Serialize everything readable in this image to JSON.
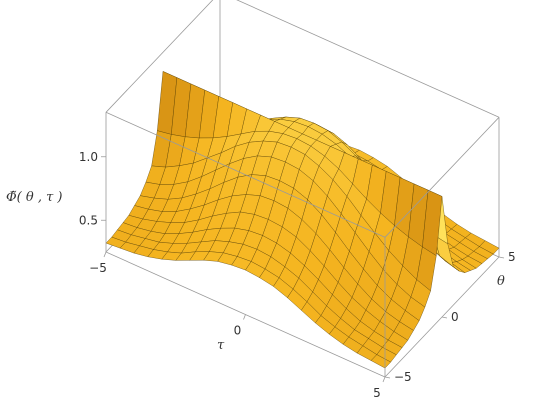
{
  "chart_data": {
    "type": "surface",
    "title": "",
    "xlabel": "τ",
    "ylabel": "θ",
    "zlabel": "Φ̃( θ , τ )",
    "xlim": [
      -5,
      5
    ],
    "ylim": [
      -5,
      5
    ],
    "zlim": [
      0.25,
      1.35
    ],
    "x_ticks": [
      {
        "value": -5,
        "label": "−5"
      },
      {
        "value": 0,
        "label": "0"
      },
      {
        "value": 5,
        "label": "5"
      }
    ],
    "y_ticks": [
      {
        "value": -5,
        "label": "−5"
      },
      {
        "value": 0,
        "label": "0"
      },
      {
        "value": 5,
        "label": "5"
      }
    ],
    "z_ticks": [
      {
        "value": 0.5,
        "label": "0.5"
      },
      {
        "value": 1.0,
        "label": "1.0"
      }
    ],
    "tau_grid": [
      -5,
      -4.5,
      -4,
      -3.5,
      -3,
      -2.5,
      -2,
      -1.5,
      -1,
      -0.5,
      0,
      0.5,
      1,
      1.5,
      2,
      2.5,
      3,
      3.5,
      4,
      4.5,
      5
    ],
    "theta_grid": [
      -5,
      -4.5,
      -4,
      -3.5,
      -3,
      -2.5,
      -2,
      -1.5,
      -1,
      -0.5,
      0,
      0.5,
      1,
      1.5,
      2,
      2.5,
      3,
      3.5,
      4,
      4.5,
      5
    ],
    "z_values": [
      [
        0.32,
        0.32,
        0.33,
        0.34,
        0.35,
        0.38,
        0.41,
        0.47,
        0.55,
        0.78,
        1.2,
        0.78,
        0.55,
        0.47,
        0.41,
        0.38,
        0.35,
        0.34,
        0.33,
        0.32,
        0.32
      ],
      [
        0.33,
        0.33,
        0.34,
        0.35,
        0.37,
        0.4,
        0.44,
        0.5,
        0.59,
        0.8,
        1.2,
        0.8,
        0.59,
        0.5,
        0.44,
        0.4,
        0.37,
        0.35,
        0.34,
        0.33,
        0.33
      ],
      [
        0.34,
        0.35,
        0.36,
        0.37,
        0.4,
        0.43,
        0.48,
        0.55,
        0.65,
        0.83,
        1.2,
        0.83,
        0.65,
        0.55,
        0.48,
        0.43,
        0.4,
        0.37,
        0.36,
        0.35,
        0.34
      ],
      [
        0.36,
        0.37,
        0.38,
        0.4,
        0.44,
        0.48,
        0.54,
        0.62,
        0.72,
        0.87,
        1.2,
        0.87,
        0.72,
        0.62,
        0.54,
        0.48,
        0.44,
        0.4,
        0.38,
        0.37,
        0.36
      ],
      [
        0.39,
        0.4,
        0.42,
        0.45,
        0.49,
        0.55,
        0.62,
        0.71,
        0.81,
        0.92,
        1.2,
        0.92,
        0.81,
        0.71,
        0.62,
        0.55,
        0.49,
        0.45,
        0.42,
        0.4,
        0.39
      ],
      [
        0.43,
        0.44,
        0.47,
        0.51,
        0.56,
        0.63,
        0.71,
        0.81,
        0.9,
        0.98,
        1.2,
        0.98,
        0.9,
        0.81,
        0.71,
        0.63,
        0.56,
        0.51,
        0.47,
        0.44,
        0.43
      ],
      [
        0.48,
        0.5,
        0.53,
        0.58,
        0.64,
        0.72,
        0.81,
        0.91,
        1.0,
        1.05,
        1.2,
        1.05,
        1.0,
        0.91,
        0.81,
        0.72,
        0.64,
        0.58,
        0.53,
        0.5,
        0.48
      ],
      [
        0.53,
        0.55,
        0.59,
        0.64,
        0.71,
        0.8,
        0.9,
        1.0,
        1.08,
        1.12,
        1.2,
        1.12,
        1.08,
        1.0,
        0.9,
        0.8,
        0.71,
        0.64,
        0.59,
        0.55,
        0.53
      ],
      [
        0.57,
        0.59,
        0.63,
        0.69,
        0.77,
        0.86,
        0.97,
        1.07,
        1.14,
        1.17,
        1.2,
        1.17,
        1.14,
        1.07,
        0.97,
        0.86,
        0.77,
        0.69,
        0.63,
        0.59,
        0.57
      ],
      [
        0.59,
        0.61,
        0.66,
        0.72,
        0.8,
        0.9,
        1.01,
        1.11,
        1.18,
        1.2,
        1.2,
        1.2,
        1.18,
        1.11,
        1.01,
        0.9,
        0.8,
        0.72,
        0.66,
        0.61,
        0.59
      ],
      [
        0.6,
        0.62,
        0.67,
        0.73,
        0.81,
        0.91,
        1.02,
        1.12,
        1.19,
        1.21,
        1.2,
        1.21,
        1.19,
        1.12,
        1.02,
        0.91,
        0.81,
        0.73,
        0.67,
        0.62,
        0.6
      ],
      [
        0.59,
        0.61,
        0.66,
        0.72,
        0.8,
        0.9,
        1.01,
        1.11,
        1.18,
        1.2,
        1.2,
        1.2,
        1.18,
        1.11,
        1.01,
        0.9,
        0.8,
        0.72,
        0.66,
        0.61,
        0.59
      ],
      [
        0.57,
        0.59,
        0.63,
        0.69,
        0.77,
        0.86,
        0.97,
        1.07,
        1.14,
        1.17,
        1.2,
        1.17,
        1.14,
        1.07,
        0.97,
        0.86,
        0.77,
        0.69,
        0.63,
        0.59,
        0.57
      ],
      [
        0.53,
        0.55,
        0.59,
        0.64,
        0.71,
        0.8,
        0.9,
        1.0,
        1.08,
        1.12,
        1.2,
        1.12,
        1.08,
        1.0,
        0.9,
        0.8,
        0.71,
        0.64,
        0.59,
        0.55,
        0.53
      ],
      [
        0.48,
        0.5,
        0.53,
        0.58,
        0.64,
        0.72,
        0.81,
        0.91,
        1.0,
        1.05,
        1.2,
        1.05,
        1.0,
        0.91,
        0.81,
        0.72,
        0.64,
        0.58,
        0.53,
        0.5,
        0.48
      ],
      [
        0.43,
        0.44,
        0.47,
        0.51,
        0.56,
        0.63,
        0.71,
        0.81,
        0.9,
        0.98,
        1.2,
        0.98,
        0.9,
        0.81,
        0.71,
        0.63,
        0.56,
        0.51,
        0.47,
        0.44,
        0.43
      ],
      [
        0.39,
        0.4,
        0.42,
        0.45,
        0.49,
        0.55,
        0.62,
        0.71,
        0.81,
        0.92,
        1.2,
        0.92,
        0.81,
        0.71,
        0.62,
        0.55,
        0.49,
        0.45,
        0.42,
        0.4,
        0.39
      ],
      [
        0.36,
        0.37,
        0.38,
        0.4,
        0.44,
        0.48,
        0.54,
        0.62,
        0.72,
        0.87,
        1.2,
        0.87,
        0.72,
        0.62,
        0.54,
        0.48,
        0.44,
        0.4,
        0.38,
        0.37,
        0.36
      ],
      [
        0.34,
        0.35,
        0.36,
        0.37,
        0.4,
        0.43,
        0.48,
        0.55,
        0.65,
        0.83,
        1.2,
        0.83,
        0.65,
        0.55,
        0.48,
        0.43,
        0.4,
        0.37,
        0.36,
        0.35,
        0.34
      ],
      [
        0.33,
        0.33,
        0.34,
        0.35,
        0.37,
        0.4,
        0.44,
        0.5,
        0.59,
        0.8,
        1.2,
        0.8,
        0.59,
        0.5,
        0.44,
        0.4,
        0.37,
        0.35,
        0.34,
        0.33,
        0.33
      ],
      [
        0.32,
        0.32,
        0.33,
        0.34,
        0.35,
        0.38,
        0.41,
        0.47,
        0.55,
        0.78,
        1.2,
        0.78,
        0.55,
        0.47,
        0.41,
        0.38,
        0.35,
        0.34,
        0.33,
        0.32,
        0.32
      ]
    ],
    "surface_colors": {
      "light": "#ffe15a",
      "mid": "#f5b520",
      "dark": "#a85c00",
      "mesh": "#4a3600",
      "box": "#9a9a9a"
    },
    "grid": true,
    "box": true
  }
}
